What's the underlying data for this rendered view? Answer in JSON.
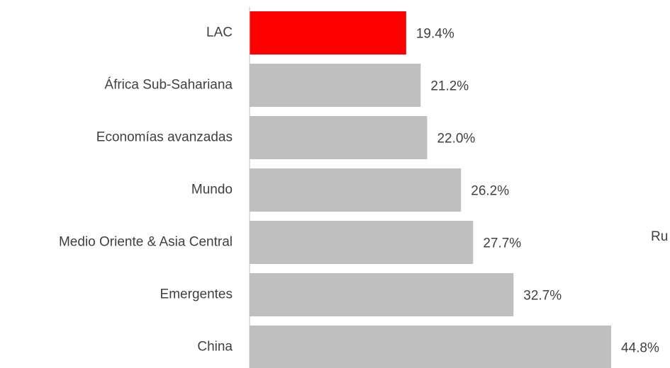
{
  "chart_data": {
    "type": "bar",
    "orientation": "horizontal",
    "categories": [
      "LAC",
      "África Sub-Sahariana",
      "Economías avanzadas",
      "Mundo",
      "Medio Oriente & Asia Central",
      "Emergentes",
      "China"
    ],
    "values": [
      19.4,
      21.2,
      22.0,
      26.2,
      27.7,
      32.7,
      44.8
    ],
    "value_labels": [
      "19.4%",
      "21.2%",
      "22.0%",
      "26.2%",
      "27.7%",
      "32.7%",
      "44.8%"
    ],
    "colors": [
      "#ff0000",
      "#bfbfbf",
      "#bfbfbf",
      "#bfbfbf",
      "#bfbfbf",
      "#bfbfbf",
      "#bfbfbf"
    ],
    "annotations": [
      "Ru"
    ]
  }
}
